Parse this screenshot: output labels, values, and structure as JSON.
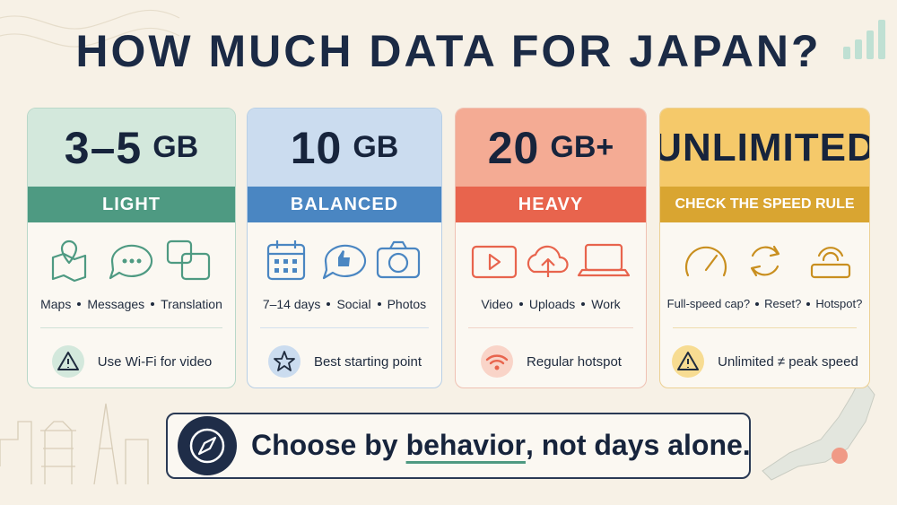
{
  "title": "HOW MUCH DATA FOR JAPAN?",
  "cards": [
    {
      "amount": "3–5",
      "unit": "GB",
      "label": "LIGHT",
      "uses": [
        "Maps",
        "Messages",
        "Translation"
      ],
      "tip": "Use Wi-Fi for video"
    },
    {
      "amount": "10",
      "unit": "GB",
      "label": "BALANCED",
      "uses": [
        "7–14 days",
        "Social",
        "Photos"
      ],
      "tip": "Best starting point"
    },
    {
      "amount": "20",
      "unit": "GB+",
      "label": "HEAVY",
      "uses": [
        "Video",
        "Uploads",
        "Work"
      ],
      "tip": "Regular hotspot"
    },
    {
      "amount": "UNLIMITED",
      "label": "CHECK THE SPEED RULE",
      "uses": [
        "Full-speed cap?",
        "Reset?",
        "Hotspot?"
      ],
      "tip": "Unlimited ≠ peak speed"
    }
  ],
  "footer": {
    "before": "Choose by",
    "emphasis": "behavior",
    "after": ", not days alone."
  }
}
